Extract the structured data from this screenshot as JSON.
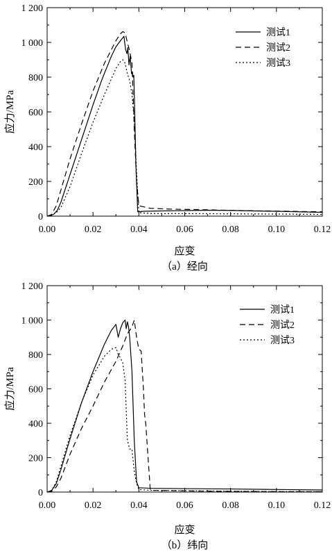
{
  "chart_data": [
    {
      "type": "line",
      "caption": "（a）经向",
      "xlabel": "应变",
      "ylabel": "应力/MPa",
      "xlim": [
        0,
        0.12
      ],
      "ylim": [
        0,
        1200
      ],
      "xticks": [
        0.0,
        0.02,
        0.04,
        0.06,
        0.08,
        0.1,
        0.12
      ],
      "xtick_labels": [
        "0.00",
        "0.02",
        "0.04",
        "0.06",
        "0.08",
        "0.10",
        "0.12"
      ],
      "yticks": [
        0,
        200,
        400,
        600,
        800,
        1000,
        1200
      ],
      "ytick_labels": [
        "0",
        "200",
        "400",
        "600",
        "800",
        "1 000",
        "1 200"
      ],
      "grid": false,
      "legend_position": "top-right",
      "series": [
        {
          "name": "测试1",
          "line_style": "solid",
          "x": [
            0,
            0.0015,
            0.003,
            0.0045,
            0.006,
            0.008,
            0.012,
            0.016,
            0.02,
            0.024,
            0.028,
            0.03,
            0.032,
            0.0335,
            0.0342,
            0.0348,
            0.0352,
            0.0357,
            0.0362,
            0.0368,
            0.0372,
            0.0375,
            0.0378,
            0.0382,
            0.0387,
            0.0395,
            0.042,
            0.05,
            0.06,
            0.07,
            0.08,
            0.09,
            0.1,
            0.11,
            0.12
          ],
          "values": [
            0,
            3,
            12,
            35,
            80,
            160,
            320,
            480,
            640,
            790,
            920,
            975,
            1010,
            1035,
            960,
            935,
            970,
            870,
            920,
            820,
            830,
            800,
            810,
            600,
            300,
            25,
            28,
            30,
            32,
            34,
            33,
            30,
            28,
            25,
            22
          ]
        },
        {
          "name": "测试2",
          "line_style": "dashed",
          "x": [
            0,
            0.002,
            0.004,
            0.006,
            0.01,
            0.015,
            0.02,
            0.025,
            0.03,
            0.032,
            0.033,
            0.034,
            0.035,
            0.036,
            0.037,
            0.038,
            0.039,
            0.04,
            0.045,
            0.055,
            0.065,
            0.075,
            0.085,
            0.095,
            0.105,
            0.12
          ],
          "values": [
            0,
            10,
            60,
            150,
            330,
            530,
            720,
            880,
            1010,
            1050,
            1062,
            1055,
            1000,
            950,
            880,
            500,
            200,
            60,
            45,
            40,
            38,
            35,
            32,
            30,
            28,
            25
          ]
        },
        {
          "name": "测试3",
          "line_style": "dotted",
          "x": [
            0,
            0.002,
            0.004,
            0.006,
            0.01,
            0.015,
            0.02,
            0.025,
            0.03,
            0.032,
            0.033,
            0.034,
            0.035,
            0.036,
            0.037,
            0.038,
            0.039,
            0.04,
            0.045,
            0.055,
            0.07,
            0.085,
            0.1,
            0.12
          ],
          "values": [
            0,
            5,
            20,
            50,
            170,
            360,
            540,
            700,
            850,
            890,
            900,
            880,
            820,
            780,
            700,
            550,
            250,
            20,
            15,
            15,
            14,
            13,
            12,
            10
          ]
        }
      ]
    },
    {
      "type": "line",
      "caption": "（b）纬向",
      "xlabel": "应变",
      "ylabel": "应力/MPa",
      "xlim": [
        0,
        0.12
      ],
      "ylim": [
        0,
        1200
      ],
      "xticks": [
        0.0,
        0.02,
        0.04,
        0.06,
        0.08,
        0.1,
        0.12
      ],
      "xtick_labels": [
        "0.00",
        "0.02",
        "0.04",
        "0.06",
        "0.08",
        "0.10",
        "0.12"
      ],
      "yticks": [
        0,
        200,
        400,
        600,
        800,
        1000,
        1200
      ],
      "ytick_labels": [
        "0",
        "200",
        "400",
        "600",
        "800",
        "1 000",
        "1 200"
      ],
      "grid": false,
      "legend_position": "top-right",
      "series": [
        {
          "name": "测试1",
          "line_style": "solid",
          "x": [
            0,
            0.002,
            0.004,
            0.006,
            0.01,
            0.015,
            0.02,
            0.025,
            0.028,
            0.03,
            0.031,
            0.032,
            0.033,
            0.034,
            0.0345,
            0.035,
            0.0355,
            0.036,
            0.037,
            0.038,
            0.039,
            0.04,
            0.045,
            0.06,
            0.08,
            0.1,
            0.12
          ],
          "values": [
            0,
            10,
            50,
            130,
            310,
            520,
            700,
            860,
            940,
            975,
            900,
            950,
            985,
            1000,
            950,
            990,
            960,
            900,
            700,
            300,
            60,
            25,
            22,
            20,
            18,
            15,
            12
          ]
        },
        {
          "name": "测试2",
          "line_style": "dashed",
          "x": [
            0,
            0.002,
            0.004,
            0.006,
            0.01,
            0.015,
            0.02,
            0.025,
            0.03,
            0.033,
            0.035,
            0.037,
            0.038,
            0.039,
            0.04,
            0.041,
            0.042,
            0.0425,
            0.043,
            0.0435,
            0.045,
            0.055,
            0.07,
            0.09,
            0.11,
            0.12
          ],
          "values": [
            0,
            5,
            30,
            80,
            220,
            370,
            500,
            640,
            760,
            850,
            920,
            960,
            1000,
            900,
            830,
            820,
            600,
            450,
            400,
            300,
            10,
            8,
            5,
            3,
            2,
            2
          ]
        },
        {
          "name": "测试3",
          "line_style": "dotted",
          "x": [
            0,
            0.002,
            0.004,
            0.006,
            0.01,
            0.015,
            0.02,
            0.025,
            0.028,
            0.03,
            0.031,
            0.032,
            0.033,
            0.034,
            0.035,
            0.036,
            0.037,
            0.038,
            0.039,
            0.04,
            0.045,
            0.06,
            0.08,
            0.1,
            0.12
          ],
          "values": [
            0,
            10,
            60,
            150,
            330,
            520,
            680,
            790,
            830,
            840,
            800,
            780,
            750,
            650,
            300,
            250,
            250,
            120,
            50,
            15,
            10,
            8,
            5,
            3,
            2
          ]
        }
      ]
    }
  ]
}
